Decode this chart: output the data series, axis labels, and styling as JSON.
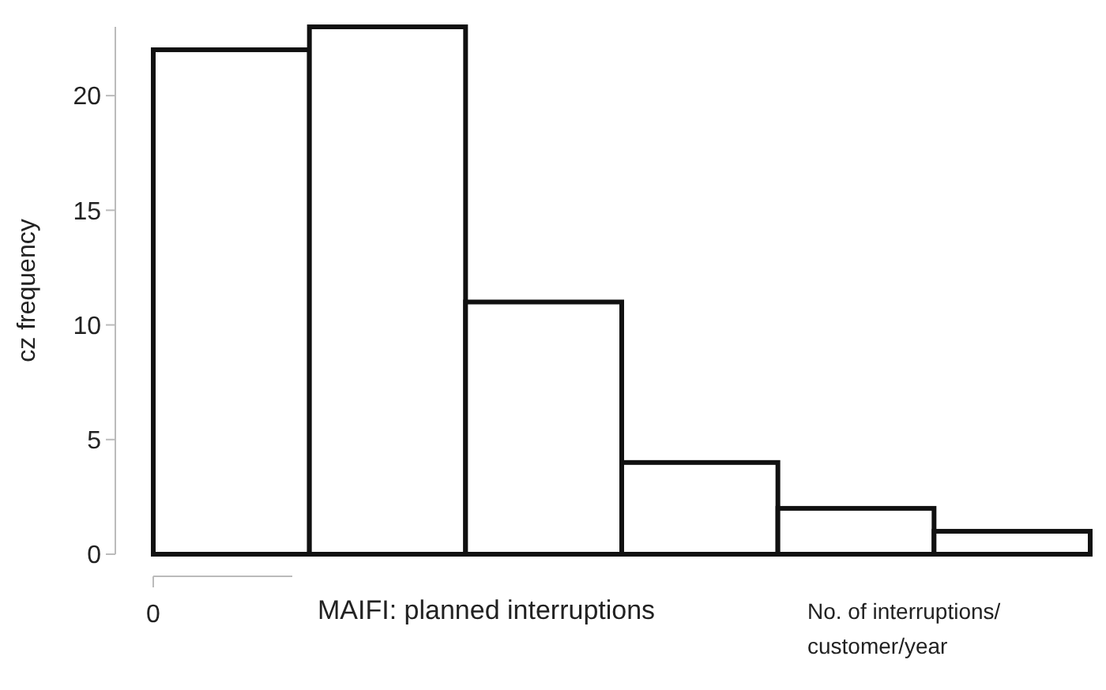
{
  "chart_data": {
    "type": "bar",
    "ylabel": "cz frequency",
    "xlabel": "MAIFI: planned interruptions",
    "categories": [
      null,
      null,
      null,
      null,
      null,
      null
    ],
    "values": [
      22,
      23,
      11,
      4,
      2,
      1
    ],
    "color": "#ffffff",
    "ylim": [
      0,
      23
    ],
    "yticks": [
      0,
      5,
      10,
      15,
      20
    ],
    "grid": false,
    "annotations": [
      "0",
      "No. of interruptions/ customer/year"
    ]
  }
}
